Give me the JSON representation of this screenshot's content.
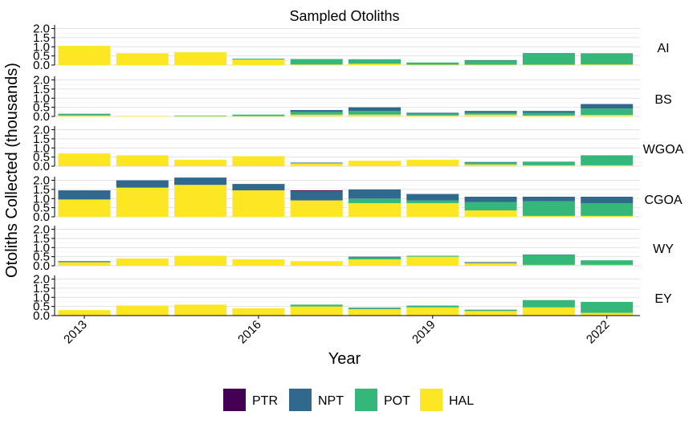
{
  "chart_data": {
    "type": "bar",
    "stacked": true,
    "title": "Sampled Otoliths",
    "xlabel": "Year",
    "ylabel": "Otoliths Collected (thousands)",
    "ylim": [
      0,
      2.2
    ],
    "yticks": [
      "0.0",
      "0.5",
      "1.0",
      "1.5",
      "2.0"
    ],
    "years": [
      2013,
      2014,
      2015,
      2016,
      2017,
      2018,
      2019,
      2020,
      2021,
      2022
    ],
    "xticks": [
      "2013",
      "2016",
      "2019",
      "2022"
    ],
    "grid": true,
    "legend_position": "bottom",
    "series": [
      {
        "name": "PTR",
        "color": "#440154"
      },
      {
        "name": "NPT",
        "color": "#31688E"
      },
      {
        "name": "POT",
        "color": "#35B779"
      },
      {
        "name": "HAL",
        "color": "#FDE725"
      }
    ],
    "panels": [
      {
        "name": "AI",
        "values": {
          "HAL": [
            1.05,
            0.65,
            0.7,
            0.3,
            0.03,
            0.07,
            0.02,
            0.02,
            0.02,
            0.03
          ],
          "POT": [
            0.0,
            0.0,
            0.0,
            0.05,
            0.3,
            0.25,
            0.12,
            0.22,
            0.62,
            0.6
          ],
          "NPT": [
            0.0,
            0.0,
            0.0,
            0.0,
            0.0,
            0.0,
            0.0,
            0.03,
            0.01,
            0.01
          ],
          "PTR": [
            0,
            0,
            0,
            0,
            0,
            0,
            0,
            0,
            0,
            0
          ]
        }
      },
      {
        "name": "BS",
        "values": {
          "HAL": [
            0.05,
            0.03,
            0.02,
            0.02,
            0.1,
            0.1,
            0.05,
            0.1,
            0.05,
            0.08
          ],
          "POT": [
            0.1,
            0.0,
            0.03,
            0.08,
            0.15,
            0.2,
            0.1,
            0.1,
            0.15,
            0.35
          ],
          "NPT": [
            0.0,
            0.0,
            0.0,
            0.0,
            0.1,
            0.2,
            0.05,
            0.1,
            0.1,
            0.25
          ],
          "PTR": [
            0,
            0,
            0,
            0,
            0,
            0,
            0,
            0,
            0,
            0
          ]
        }
      },
      {
        "name": "WGOA",
        "values": {
          "HAL": [
            0.7,
            0.6,
            0.35,
            0.55,
            0.15,
            0.3,
            0.35,
            0.1,
            0.05,
            0.05
          ],
          "POT": [
            0.0,
            0.0,
            0.0,
            0.0,
            0.03,
            0.0,
            0.0,
            0.1,
            0.2,
            0.55
          ],
          "NPT": [
            0.0,
            0.0,
            0.0,
            0.0,
            0.02,
            0.0,
            0.0,
            0.03,
            0.0,
            0.0
          ],
          "PTR": [
            0,
            0,
            0,
            0,
            0,
            0,
            0,
            0,
            0,
            0
          ]
        }
      },
      {
        "name": "CGOA",
        "values": {
          "HAL": [
            0.95,
            1.6,
            1.75,
            1.45,
            0.9,
            0.75,
            0.75,
            0.35,
            0.05,
            0.05
          ],
          "POT": [
            0.0,
            0.0,
            0.0,
            0.0,
            0.0,
            0.25,
            0.15,
            0.45,
            0.8,
            0.7
          ],
          "NPT": [
            0.5,
            0.4,
            0.4,
            0.35,
            0.5,
            0.5,
            0.35,
            0.3,
            0.25,
            0.35
          ],
          "PTR": [
            0.0,
            0.0,
            0.0,
            0.0,
            0.05,
            0.0,
            0.0,
            0.0,
            0.0,
            0.0
          ]
        }
      },
      {
        "name": "WY",
        "values": {
          "HAL": [
            0.2,
            0.4,
            0.55,
            0.35,
            0.25,
            0.35,
            0.5,
            0.15,
            0.05,
            0.05
          ],
          "POT": [
            0.0,
            0.0,
            0.0,
            0.0,
            0.0,
            0.1,
            0.05,
            0.0,
            0.55,
            0.25
          ],
          "NPT": [
            0.05,
            0.0,
            0.0,
            0.0,
            0.0,
            0.05,
            0.0,
            0.05,
            0.02,
            0.0
          ],
          "PTR": [
            0,
            0,
            0,
            0,
            0,
            0,
            0,
            0,
            0,
            0
          ]
        }
      },
      {
        "name": "EY",
        "values": {
          "HAL": [
            0.3,
            0.55,
            0.6,
            0.4,
            0.5,
            0.35,
            0.45,
            0.25,
            0.45,
            0.15
          ],
          "POT": [
            0.0,
            0.0,
            0.0,
            0.0,
            0.1,
            0.05,
            0.1,
            0.05,
            0.4,
            0.6
          ],
          "NPT": [
            0.0,
            0.0,
            0.0,
            0.0,
            0.0,
            0.03,
            0.0,
            0.02,
            0.0,
            0.0
          ],
          "PTR": [
            0,
            0,
            0,
            0,
            0,
            0,
            0,
            0,
            0,
            0
          ]
        }
      }
    ]
  }
}
